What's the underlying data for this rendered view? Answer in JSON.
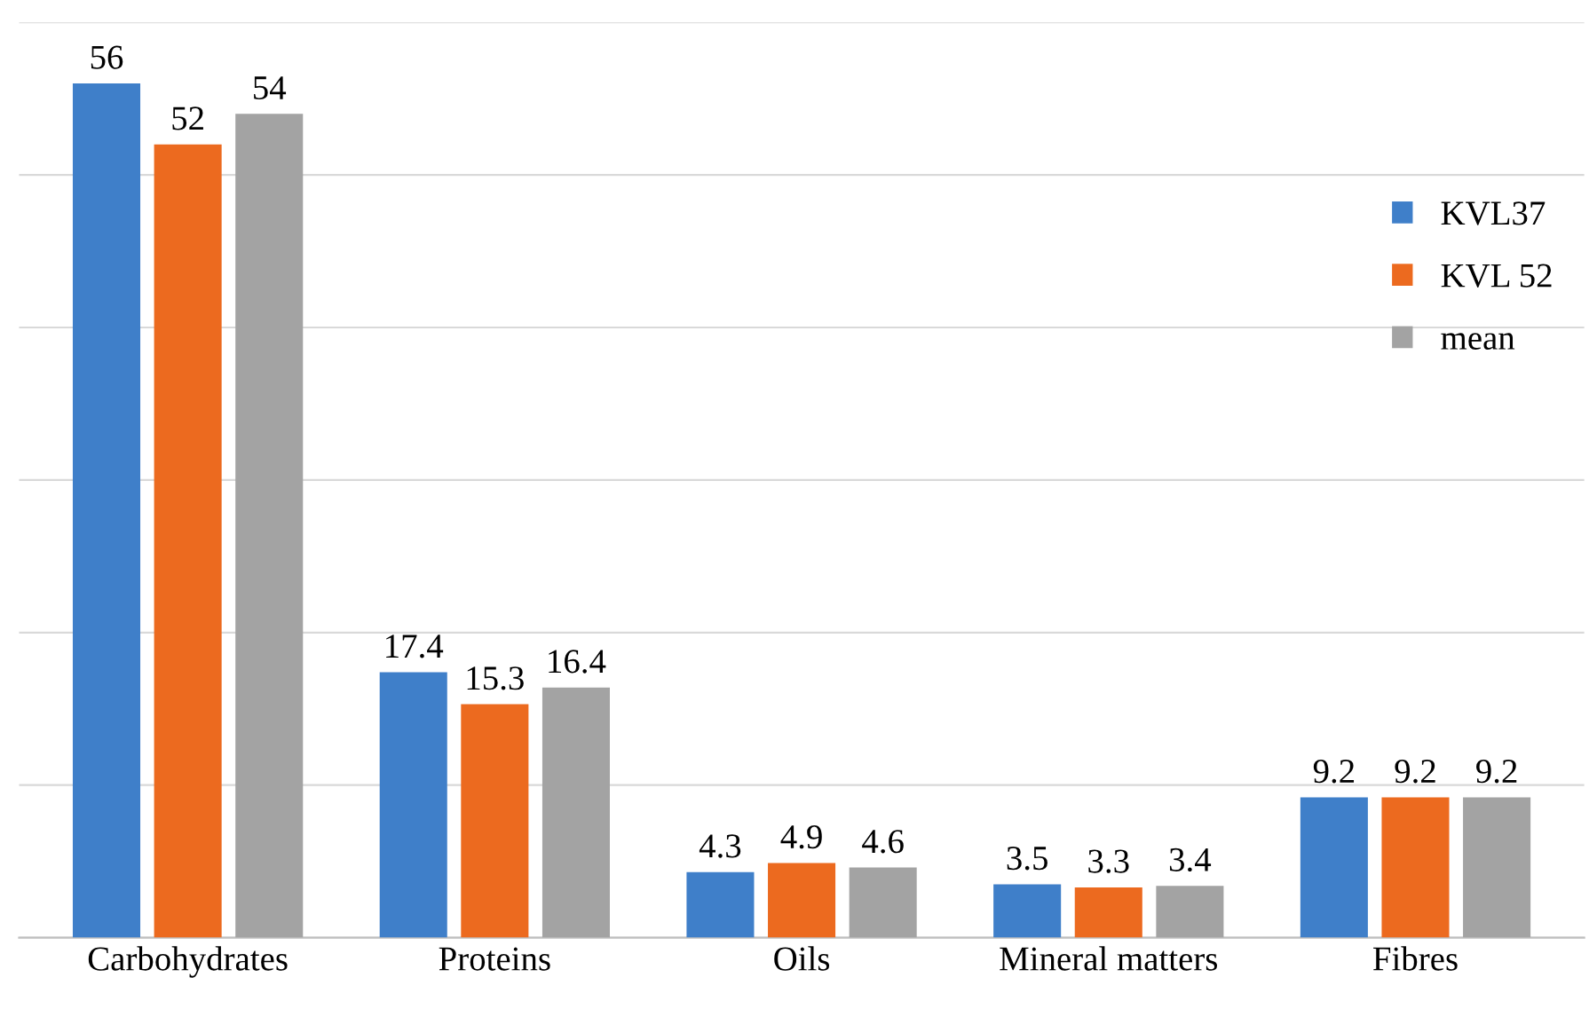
{
  "chart_data": {
    "type": "bar",
    "categories": [
      "Carbohydrates",
      "Proteins",
      "Oils",
      "Mineral matters",
      "Fibres"
    ],
    "series": [
      {
        "name": "KVL37",
        "color": "#3f7fc9",
        "values": [
          56,
          17.4,
          4.3,
          3.5,
          9.2
        ]
      },
      {
        "name": "KVL 52",
        "color": "#ec6a1f",
        "values": [
          52,
          15.3,
          4.9,
          3.3,
          9.2
        ]
      },
      {
        "name": "mean",
        "color": "#a3a3a3",
        "values": [
          54,
          16.4,
          4.6,
          3.4,
          9.2
        ]
      }
    ],
    "ylim": [
      0,
      60
    ],
    "yticks": [
      {
        "value": 0,
        "label": null
      },
      {
        "value": 10,
        "label": null
      },
      {
        "value": 20,
        "label": null
      },
      {
        "value": 30,
        "label": null
      },
      {
        "value": 40,
        "label": null
      },
      {
        "value": 50,
        "label": null
      },
      {
        "value": 60,
        "label": null
      }
    ],
    "grid": "y",
    "legend": "right",
    "data_labels": true,
    "tick_labels": "x"
  }
}
